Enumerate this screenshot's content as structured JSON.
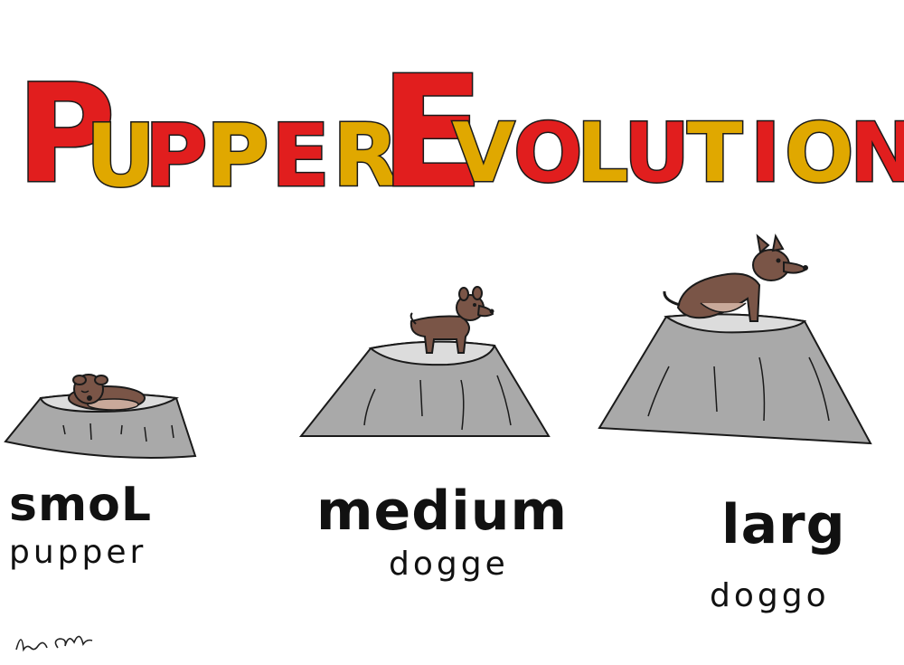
{
  "title": {
    "letters": [
      {
        "ch": "P",
        "color": "#e11e1e"
      },
      {
        "ch": "U",
        "color": "#e0a800"
      },
      {
        "ch": "P",
        "color": "#e11e1e"
      },
      {
        "ch": "P",
        "color": "#e0a800"
      },
      {
        "ch": "E",
        "color": "#e11e1e"
      },
      {
        "ch": "R",
        "color": "#e0a800"
      },
      {
        "ch": "E",
        "color": "#e11e1e"
      },
      {
        "ch": "V",
        "color": "#e0a800"
      },
      {
        "ch": "O",
        "color": "#e11e1e"
      },
      {
        "ch": "L",
        "color": "#e0a800"
      },
      {
        "ch": "U",
        "color": "#e11e1e"
      },
      {
        "ch": "T",
        "color": "#e0a800"
      },
      {
        "ch": "I",
        "color": "#e11e1e"
      },
      {
        "ch": "O",
        "color": "#e0a800"
      },
      {
        "ch": "N",
        "color": "#e11e1e"
      }
    ]
  },
  "stages": [
    {
      "main": "smoL",
      "sub": "pupper"
    },
    {
      "main": "medium",
      "sub": "dogge"
    },
    {
      "main": "larg",
      "sub": "doggo"
    }
  ],
  "colors": {
    "stump": "#a9a9a9",
    "stump_top": "#dcdcdc",
    "dog": "#7a5547",
    "dog_belly": "#c9a99a",
    "outline": "#1a1a1a"
  },
  "signature": "Alex Cr"
}
